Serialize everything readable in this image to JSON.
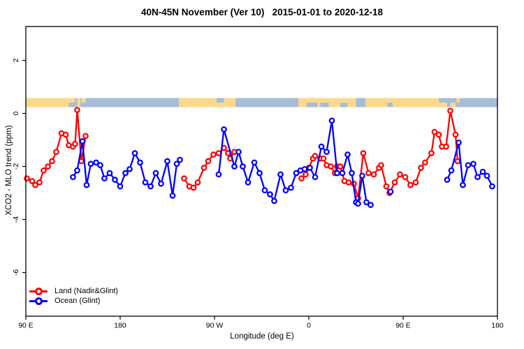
{
  "title": "40N-45N November (Ver 10)   2015-01-01 to 2020-12-18",
  "legend": [
    {
      "label": "Land (Nadir&Glint)",
      "color": "#ff0000"
    },
    {
      "label": "Ocean (Glint)",
      "color": "#0000ff"
    }
  ],
  "chart_data": {
    "type": "line",
    "title": "40N-45N November (Ver 10)   2015-01-01 to 2020-12-18",
    "xlabel": "Longitude (deg E)",
    "ylabel": "XCO2 - MLO trend (ppm)",
    "x_axis_note": "longitude axis wraps: 90E -> 180 -> 90W -> 0 -> 90E -> 180 (stored as continuous 90..540 deg E)",
    "xlim": [
      90,
      540
    ],
    "ylim": [
      -7.6,
      3.2
    ],
    "x_ticks": [
      {
        "x": 90,
        "label": "90 E"
      },
      {
        "x": 180,
        "label": "180"
      },
      {
        "x": 270,
        "label": "90 W"
      },
      {
        "x": 360,
        "label": "0"
      },
      {
        "x": 450,
        "label": "90 E"
      },
      {
        "x": 540,
        "label": "180"
      }
    ],
    "y_ticks": [
      {
        "v": 2,
        "label": "2"
      },
      {
        "v": 0,
        "label": "0"
      },
      {
        "v": -2,
        "label": "-2"
      },
      {
        "v": -4,
        "label": "-4"
      },
      {
        "v": -6,
        "label": "-6"
      }
    ],
    "grid": false,
    "legend_position": "bottom-left",
    "series": [
      {
        "name": "Land (Nadir&Glint)",
        "color": "#ff0000",
        "points": [
          [
            91,
            -2.45
          ],
          [
            96,
            -2.55
          ],
          [
            99,
            -2.7
          ],
          [
            103,
            -2.6
          ],
          [
            107,
            -2.15
          ],
          [
            111,
            -2.0
          ],
          [
            115,
            -1.8
          ],
          [
            119,
            -1.45
          ],
          [
            124,
            -0.75
          ],
          [
            128,
            -0.8
          ],
          [
            131,
            -1.2
          ],
          [
            135,
            -1.25
          ],
          [
            137,
            -1.15
          ],
          [
            139,
            0.13
          ],
          [
            143,
            -1.8
          ],
          [
            147,
            -0.85
          ],
          [
            241,
            -2.45
          ],
          [
            246,
            -2.75
          ],
          [
            250,
            -2.8
          ],
          [
            254,
            -2.6
          ],
          [
            260,
            -2.05
          ],
          [
            264,
            -1.8
          ],
          [
            269,
            -1.55
          ],
          [
            274,
            -1.5
          ],
          [
            279,
            -1.3
          ],
          [
            283,
            -1.5
          ],
          [
            285,
            -1.7
          ],
          [
            289,
            -1.45
          ],
          [
            353,
            -2.45
          ],
          [
            357,
            -2.3
          ],
          [
            360,
            -2.05
          ],
          [
            364,
            -1.7
          ],
          [
            366,
            -1.6
          ],
          [
            371,
            -1.7
          ],
          [
            374,
            -1.7
          ],
          [
            377,
            -1.95
          ],
          [
            381,
            -2.0
          ],
          [
            385,
            -2.25
          ],
          [
            387,
            -2.0
          ],
          [
            390,
            -2.0
          ],
          [
            394,
            -2.55
          ],
          [
            398,
            -2.6
          ],
          [
            403,
            -2.65
          ],
          [
            407,
            -3.2
          ],
          [
            412,
            -1.5
          ],
          [
            417,
            -2.25
          ],
          [
            422,
            -2.3
          ],
          [
            427,
            -2.05
          ],
          [
            429,
            -1.95
          ],
          [
            434,
            -2.75
          ],
          [
            437,
            -3.0
          ],
          [
            442,
            -2.6
          ],
          [
            447,
            -2.3
          ],
          [
            452,
            -2.4
          ],
          [
            457,
            -2.7
          ],
          [
            462,
            -2.6
          ],
          [
            467,
            -2.05
          ],
          [
            471,
            -1.85
          ],
          [
            477,
            -1.5
          ],
          [
            480,
            -0.7
          ],
          [
            484,
            -0.8
          ],
          [
            487,
            -1.25
          ],
          [
            491,
            -1.25
          ],
          [
            495,
            0.1
          ],
          [
            500,
            -0.8
          ],
          [
            502,
            -1.8
          ]
        ]
      },
      {
        "name": "Ocean (Glint)",
        "color": "#0000ff",
        "points": [
          [
            135,
            -2.4
          ],
          [
            139,
            -2.15
          ],
          [
            144,
            -1.05
          ],
          [
            148,
            -2.7
          ],
          [
            152,
            -1.9
          ],
          [
            157,
            -1.85
          ],
          [
            161,
            -1.95
          ],
          [
            165,
            -2.45
          ],
          [
            170,
            -2.25
          ],
          [
            175,
            -2.5
          ],
          [
            180,
            -2.75
          ],
          [
            185,
            -2.25
          ],
          [
            189,
            -2.1
          ],
          [
            194,
            -1.5
          ],
          [
            199,
            -1.85
          ],
          [
            204,
            -2.6
          ],
          [
            209,
            -2.75
          ],
          [
            214,
            -2.25
          ],
          [
            219,
            -2.65
          ],
          [
            225,
            -1.8
          ],
          [
            230,
            -3.1
          ],
          [
            234,
            -1.9
          ],
          [
            237,
            -1.75
          ],
          [
            274,
            -2.3
          ],
          [
            279,
            -0.6
          ],
          [
            289,
            -2.0
          ],
          [
            293,
            -1.45
          ],
          [
            297,
            -2.0
          ],
          [
            302,
            -2.6
          ],
          [
            308,
            -1.85
          ],
          [
            313,
            -2.25
          ],
          [
            318,
            -2.9
          ],
          [
            323,
            -3.05
          ],
          [
            327,
            -3.3
          ],
          [
            333,
            -2.3
          ],
          [
            338,
            -2.9
          ],
          [
            343,
            -2.8
          ],
          [
            348,
            -2.25
          ],
          [
            352,
            -2.15
          ],
          [
            356,
            -2.1
          ],
          [
            361,
            -2.05
          ],
          [
            366,
            -2.4
          ],
          [
            372,
            -1.25
          ],
          [
            377,
            -1.45
          ],
          [
            382,
            -0.27
          ],
          [
            387,
            -2.25
          ],
          [
            392,
            -2.25
          ],
          [
            397,
            -1.55
          ],
          [
            401,
            -2.25
          ],
          [
            405,
            -3.35
          ],
          [
            407,
            -3.4
          ],
          [
            411,
            -2.35
          ],
          [
            415,
            -3.35
          ],
          [
            419,
            -3.45
          ],
          [
            438,
            -2.95
          ],
          [
            492,
            -2.5
          ],
          [
            496,
            -2.15
          ],
          [
            503,
            -1.1
          ],
          [
            507,
            -2.7
          ],
          [
            512,
            -1.95
          ],
          [
            517,
            -1.9
          ],
          [
            521,
            -2.4
          ],
          [
            526,
            -2.2
          ],
          [
            530,
            -2.35
          ],
          [
            535,
            -2.75
          ]
        ]
      }
    ],
    "map_band": {
      "description": "land/ocean map strip drawn across the plot just above 0 ppm",
      "land_color": "#fad98f",
      "ocean_color": "#a8bcd8",
      "segments": [
        {
          "from": 90,
          "to": 131,
          "type": "land"
        },
        {
          "from": 131,
          "to": 139,
          "type": "ocean"
        },
        {
          "from": 139,
          "to": 142,
          "type": "land"
        },
        {
          "from": 142,
          "to": 236,
          "type": "ocean"
        },
        {
          "from": 236,
          "to": 290,
          "type": "land"
        },
        {
          "from": 290,
          "to": 350,
          "type": "ocean"
        },
        {
          "from": 350,
          "to": 405,
          "type": "land"
        },
        {
          "from": 405,
          "to": 414,
          "type": "ocean"
        },
        {
          "from": 414,
          "to": 492,
          "type": "land"
        },
        {
          "from": 492,
          "to": 540,
          "type": "ocean"
        }
      ],
      "patches": [
        {
          "from": 131,
          "to": 137,
          "type": "land",
          "half": "top"
        },
        {
          "from": 143,
          "to": 147,
          "type": "land",
          "half": "top"
        },
        {
          "from": 272,
          "to": 279,
          "type": "ocean",
          "half": "top"
        },
        {
          "from": 358,
          "to": 368,
          "type": "ocean",
          "half": "bottom"
        },
        {
          "from": 371,
          "to": 379,
          "type": "ocean",
          "half": "bottom"
        },
        {
          "from": 390,
          "to": 397,
          "type": "ocean",
          "half": "bottom"
        },
        {
          "from": 435,
          "to": 440,
          "type": "ocean",
          "half": "bottom"
        },
        {
          "from": 484,
          "to": 492,
          "type": "ocean",
          "half": "top"
        },
        {
          "from": 495,
          "to": 500,
          "type": "land",
          "half": "bottom"
        },
        {
          "from": 501,
          "to": 504,
          "type": "land",
          "half": "top"
        }
      ]
    }
  }
}
